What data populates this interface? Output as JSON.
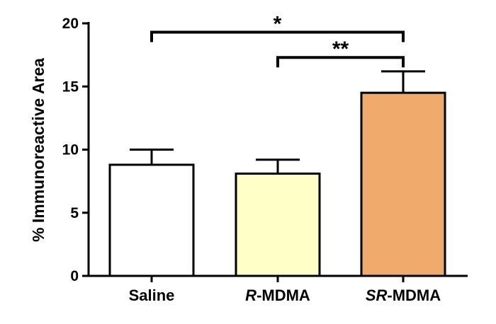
{
  "chart_data": {
    "type": "bar",
    "title": "",
    "xlabel": "",
    "ylabel": "% Immunoreactive Area",
    "ylim": [
      0,
      20
    ],
    "yticks": [
      0,
      5,
      10,
      15,
      20
    ],
    "grid": false,
    "categories": [
      {
        "prefix": "",
        "suffix": "Saline"
      },
      {
        "prefix": "R",
        "suffix": "-MDMA"
      },
      {
        "prefix": "SR",
        "suffix": "-MDMA"
      }
    ],
    "values": [
      8.8,
      8.1,
      14.5
    ],
    "errors": [
      1.2,
      1.1,
      1.7
    ],
    "colors": [
      "#ffffff",
      "#ffffc8",
      "#f0ab6c"
    ],
    "significance": [
      {
        "from": 0,
        "to": 2,
        "label": "*",
        "y": 19.3
      },
      {
        "from": 1,
        "to": 2,
        "label": "**",
        "y": 17.3
      }
    ]
  }
}
